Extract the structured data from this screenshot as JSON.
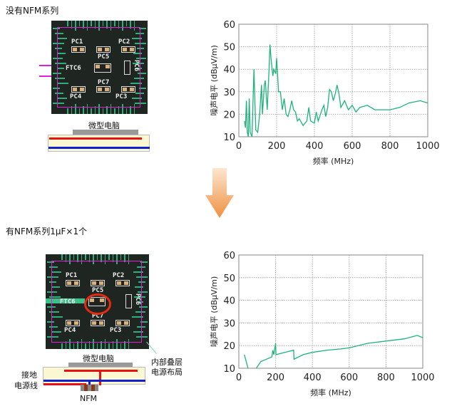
{
  "top": {
    "title": "没有NFM系列",
    "cpu_label": "微型电脑",
    "pcb_labels": [
      "PC1",
      "PC2",
      "PC5",
      "FTC6",
      "PC6",
      "PC7",
      "PC4",
      "PC3"
    ]
  },
  "bottom": {
    "title": "有NFM系列1μF×1个",
    "cpu_label": "微型电脑",
    "ground_label": "接地",
    "power_label": "电源线",
    "nfm_label": "NFM",
    "inner_label_1": "内部叠层",
    "inner_label_2": "电源布局",
    "pcb_labels": [
      "PC1",
      "PC2",
      "PC5",
      "FTC6",
      "PC6",
      "PC7",
      "PC4",
      "PC3"
    ]
  },
  "colors": {
    "line": "#1db37a",
    "arrow": "#f0a060",
    "power": "#e81010",
    "ground": "#1020d0",
    "outline": "#e020d8"
  },
  "chart_data": [
    {
      "type": "line",
      "xlabel": "频率 (MHz)",
      "ylabel": "噪声电平 (dBμV/m)",
      "xlim": [
        0,
        1000
      ],
      "ylim": [
        10,
        60
      ],
      "xticks": [
        "0",
        "200",
        "400",
        "600",
        "800",
        "1000"
      ],
      "yticks": [
        "10",
        "20",
        "30",
        "40",
        "50",
        "60"
      ],
      "grid": true,
      "series": [
        {
          "x": [
            30,
            35,
            40,
            45,
            50,
            55,
            60,
            70,
            80,
            90,
            100,
            110,
            120,
            125,
            135,
            140,
            150,
            160,
            165,
            170,
            180,
            185,
            195,
            200,
            205,
            210,
            220,
            230,
            240,
            250,
            260,
            270,
            280,
            290,
            300,
            310,
            320,
            340,
            360,
            370,
            380,
            400,
            410,
            420,
            440,
            450,
            460,
            470,
            480,
            490,
            500,
            510,
            520,
            530,
            540,
            560,
            570,
            580,
            600,
            620,
            640,
            680,
            720,
            760,
            800,
            850,
            900,
            960,
            1000
          ],
          "y": [
            17,
            14,
            26,
            12,
            10,
            27,
            12,
            10,
            40,
            13,
            12,
            20,
            33,
            20,
            33,
            35,
            22,
            40,
            51,
            45,
            37,
            40,
            38,
            45,
            38,
            30,
            30,
            22,
            27,
            20,
            19,
            22,
            26,
            22,
            21,
            17,
            18,
            15,
            17,
            23,
            17,
            16,
            21,
            17,
            22,
            24,
            19,
            23,
            31,
            30,
            26,
            29,
            33,
            29,
            23,
            26,
            24,
            22,
            24,
            21,
            23,
            24,
            22,
            22,
            22,
            23,
            25,
            26,
            25
          ]
        }
      ]
    },
    {
      "type": "line",
      "xlabel": "频率 (MHz)",
      "ylabel": "噪声电平 (dBμV/m)",
      "xlim": [
        0,
        1000
      ],
      "ylim": [
        10,
        60
      ],
      "xticks": [
        "0",
        "200",
        "400",
        "600",
        "800",
        "1000"
      ],
      "yticks": [
        "10",
        "20",
        "30",
        "40",
        "50",
        "60"
      ],
      "grid": true,
      "series": [
        {
          "x": [
            30,
            50,
            null,
            95,
            120,
            150,
            180,
            185,
            190,
            200,
            202,
            250,
            298,
            300,
            350,
            400,
            480,
            550,
            600,
            700,
            800,
            900,
            970,
            1000
          ],
          "y": [
            16,
            10,
            null,
            10,
            13,
            14,
            15,
            18,
            16,
            21,
            16,
            17,
            18,
            14,
            16,
            17,
            18,
            18.5,
            19,
            21,
            22,
            23,
            24.5,
            23.5
          ]
        }
      ]
    }
  ]
}
